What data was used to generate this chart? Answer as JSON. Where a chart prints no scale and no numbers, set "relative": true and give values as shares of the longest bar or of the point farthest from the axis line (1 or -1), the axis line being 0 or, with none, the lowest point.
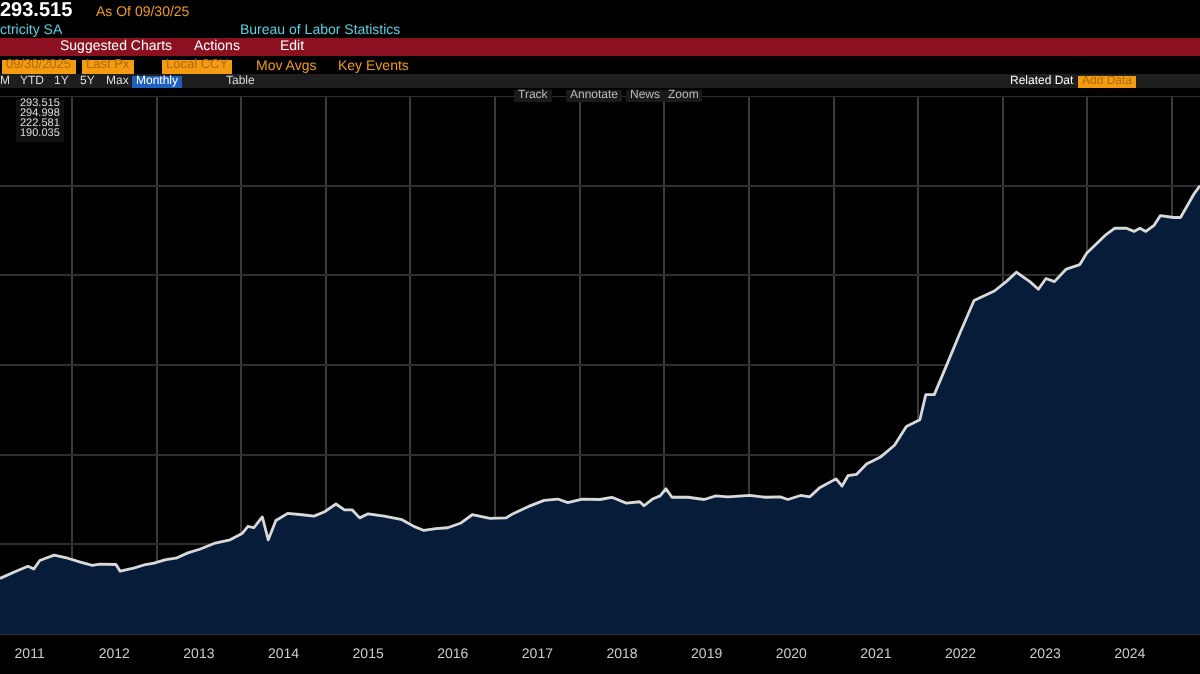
{
  "chart_data": {
    "type": "area",
    "relative": true,
    "grid": true,
    "color": "#d9d9d9",
    "x": [
      2011.15,
      2011.34,
      2011.48,
      2011.55,
      2011.62,
      2011.69,
      2011.79,
      2011.95,
      2012.09,
      2012.24,
      2012.33,
      2012.52,
      2012.57,
      2012.73,
      2012.87,
      2012.97,
      2013.11,
      2013.23,
      2013.37,
      2013.51,
      2013.68,
      2013.87,
      2014.01,
      2014.08,
      2014.15,
      2014.25,
      2014.32,
      2014.41,
      2014.55,
      2014.72,
      2014.86,
      2014.98,
      2015.12,
      2015.22,
      2015.31,
      2015.4,
      2015.5,
      2015.69,
      2015.9,
      2016.04,
      2016.16,
      2016.3,
      2016.44,
      2016.59,
      2016.73,
      2016.94,
      2017.13,
      2017.22,
      2017.39,
      2017.58,
      2017.74,
      2017.86,
      2018.03,
      2018.24,
      2018.38,
      2018.55,
      2018.71,
      2018.76,
      2018.86,
      2018.95,
      2019.02,
      2019.09,
      2019.28,
      2019.47,
      2019.61,
      2019.75,
      2020.01,
      2020.2,
      2020.37,
      2020.46,
      2020.61,
      2020.72,
      2020.84,
      2021.03,
      2021.1,
      2021.17,
      2021.27,
      2021.39,
      2021.55,
      2021.72,
      2021.86,
      2022.02,
      2022.09,
      2022.19,
      2022.33,
      2022.5,
      2022.66,
      2022.9,
      2023.04,
      2023.16,
      2023.32,
      2023.42,
      2023.51,
      2023.61,
      2023.75,
      2023.91,
      2023.99,
      2024.22,
      2024.32,
      2024.46,
      2024.55,
      2024.62,
      2024.69,
      2024.79,
      2024.86,
      2025.02,
      2025.1,
      2025.26,
      2025.33
    ],
    "values": [
      0.124,
      0.14,
      0.151,
      0.145,
      0.164,
      0.169,
      0.176,
      0.169,
      0.161,
      0.153,
      0.156,
      0.155,
      0.14,
      0.147,
      0.155,
      0.158,
      0.166,
      0.169,
      0.181,
      0.189,
      0.202,
      0.21,
      0.224,
      0.24,
      0.237,
      0.261,
      0.21,
      0.253,
      0.269,
      0.266,
      0.263,
      0.272,
      0.29,
      0.277,
      0.277,
      0.259,
      0.268,
      0.263,
      0.255,
      0.24,
      0.231,
      0.235,
      0.237,
      0.247,
      0.266,
      0.258,
      0.259,
      0.269,
      0.284,
      0.298,
      0.301,
      0.293,
      0.301,
      0.3,
      0.305,
      0.292,
      0.295,
      0.286,
      0.301,
      0.308,
      0.324,
      0.305,
      0.305,
      0.3,
      0.308,
      0.306,
      0.309,
      0.305,
      0.306,
      0.3,
      0.309,
      0.306,
      0.327,
      0.346,
      0.33,
      0.353,
      0.356,
      0.379,
      0.394,
      0.421,
      0.463,
      0.478,
      0.534,
      0.534,
      0.597,
      0.674,
      0.744,
      0.765,
      0.786,
      0.807,
      0.786,
      0.769,
      0.793,
      0.786,
      0.814,
      0.824,
      0.849,
      0.891,
      0.905,
      0.905,
      0.898,
      0.905,
      0.898,
      0.912,
      0.933,
      0.929,
      0.929,
      0.982,
      1
    ],
    "xlim": [
      2011.15,
      2025.33
    ],
    "xticks": [
      {
        "value": 2011.5,
        "label": "2011"
      },
      {
        "value": 2012,
        "label": null
      },
      {
        "value": 2012.5,
        "label": "2012"
      },
      {
        "value": 2013,
        "label": null
      },
      {
        "value": 2013.5,
        "label": "2013"
      },
      {
        "value": 2014,
        "label": null
      },
      {
        "value": 2014.5,
        "label": "2014"
      },
      {
        "value": 2015,
        "label": null
      },
      {
        "value": 2015.5,
        "label": "2015"
      },
      {
        "value": 2016,
        "label": null
      },
      {
        "value": 2016.5,
        "label": "2016"
      },
      {
        "value": 2017,
        "label": null
      },
      {
        "value": 2017.5,
        "label": "2017"
      },
      {
        "value": 2018,
        "label": null
      },
      {
        "value": 2018.5,
        "label": "2018"
      },
      {
        "value": 2019,
        "label": null
      },
      {
        "value": 2019.5,
        "label": "2019"
      },
      {
        "value": 2020,
        "label": null
      },
      {
        "value": 2020.5,
        "label": "2020"
      },
      {
        "value": 2021,
        "label": null
      },
      {
        "value": 2021.5,
        "label": "2021"
      },
      {
        "value": 2022,
        "label": null
      },
      {
        "value": 2022.5,
        "label": "2022"
      },
      {
        "value": 2023,
        "label": null
      },
      {
        "value": 2023.5,
        "label": "2023"
      },
      {
        "value": 2024,
        "label": null
      },
      {
        "value": 2024.5,
        "label": "2024"
      },
      {
        "value": 2025,
        "label": null
      }
    ],
    "annotations": [
      "293.515",
      "As Of 09/30/25",
      "ctricity SA",
      "Bureau of Labor Statistics",
      "Suggested Charts",
      "Actions",
      "Edit",
      "09/30/2025",
      "Last Px",
      "Local CCY",
      "Mov Avgs",
      "Key Events",
      "M",
      "YTD",
      "1Y",
      "5Y",
      "Max",
      "Monthly",
      "Table",
      "Track",
      "Annotate",
      "News",
      "Zoom",
      "Related Dat",
      "Add Data",
      "293.515",
      "294.998",
      "222.581",
      "190.035"
    ]
  }
}
